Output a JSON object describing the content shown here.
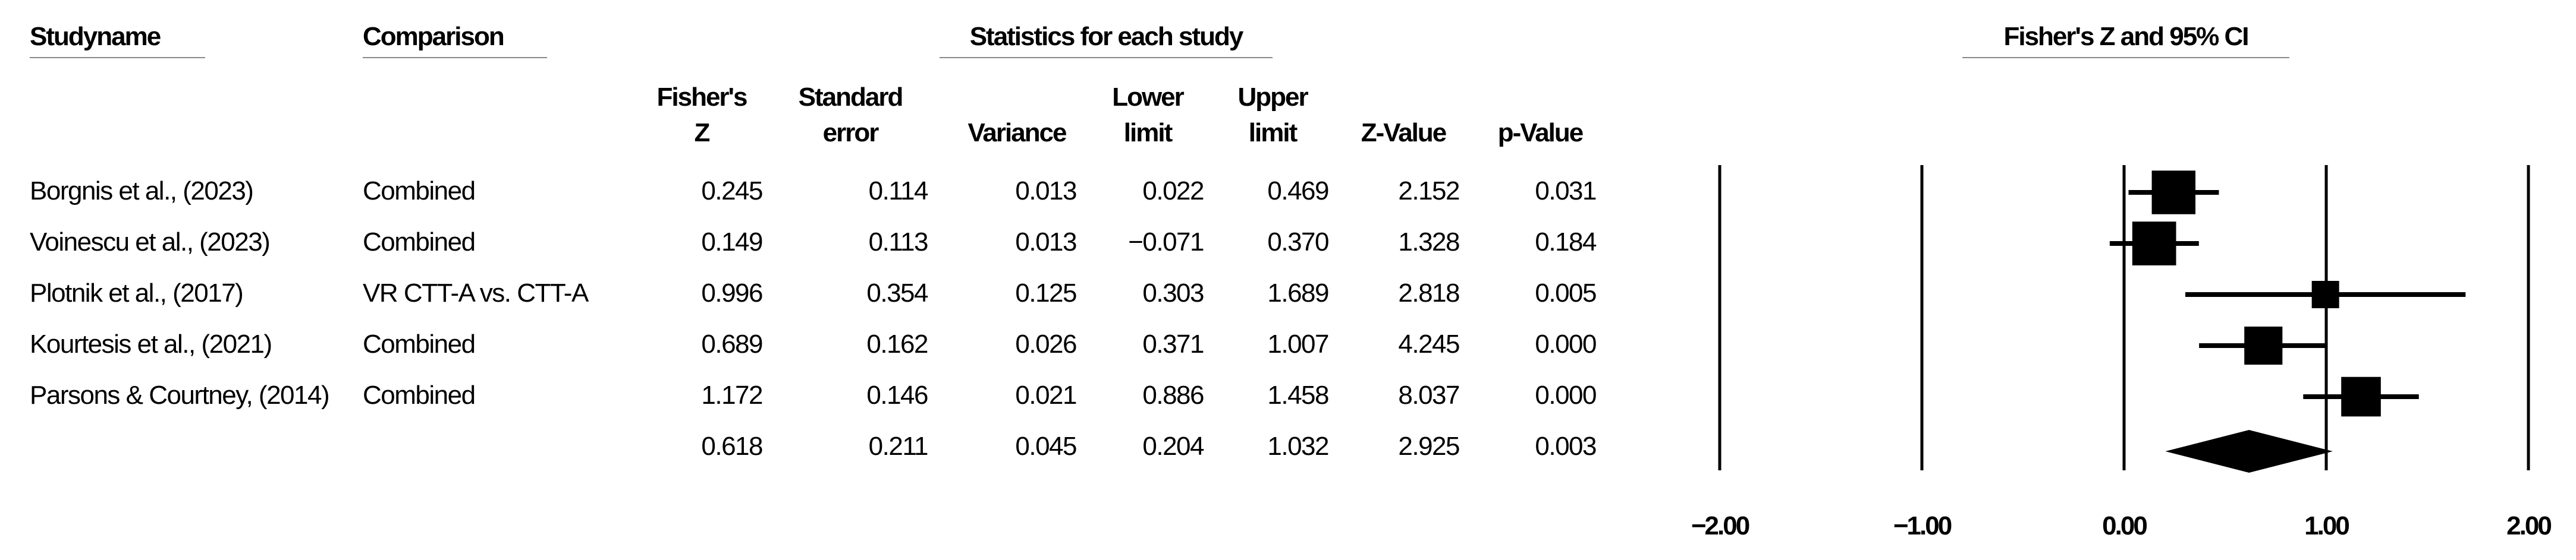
{
  "headers": {
    "study_name": "Studyname",
    "comparison": "Comparison",
    "statistics_group": "Statistics for each study",
    "plot_title": "Fisher's Z and 95% CI",
    "columns": [
      [
        "Fisher's",
        "Z"
      ],
      [
        "Standard",
        "error"
      ],
      [
        "",
        "Variance"
      ],
      [
        "Lower",
        "limit"
      ],
      [
        "Upper",
        "limit"
      ],
      [
        "",
        "Z-Value"
      ],
      [
        "",
        "p-Value"
      ]
    ]
  },
  "rows": [
    {
      "study": "Borgnis et al., (2023)",
      "comparison": "Combined",
      "z": "0.245",
      "se": "0.114",
      "var": "0.013",
      "ll": "0.022",
      "ul": "0.469",
      "zval": "2.152",
      "p": "0.031"
    },
    {
      "study": "Voinescu et al., (2023)",
      "comparison": "Combined",
      "z": "0.149",
      "se": "0.113",
      "var": "0.013",
      "ll": "−0.071",
      "ul": "0.370",
      "zval": "1.328",
      "p": "0.184"
    },
    {
      "study": "Plotnik et al., (2017)",
      "comparison": "VR CTT-A vs. CTT-A",
      "z": "0.996",
      "se": "0.354",
      "var": "0.125",
      "ll": "0.303",
      "ul": "1.689",
      "zval": "2.818",
      "p": "0.005"
    },
    {
      "study": "Kourtesis et al., (2021)",
      "comparison": "Combined",
      "z": "0.689",
      "se": "0.162",
      "var": "0.026",
      "ll": "0.371",
      "ul": "1.007",
      "zval": "4.245",
      "p": "0.000"
    },
    {
      "study": "Parsons & Courtney, (2014)",
      "comparison": "Combined",
      "z": "1.172",
      "se": "0.146",
      "var": "0.021",
      "ll": "0.886",
      "ul": "1.458",
      "zval": "8.037",
      "p": "0.000"
    }
  ],
  "summary": {
    "z": "0.618",
    "se": "0.211",
    "var": "0.045",
    "ll": "0.204",
    "ul": "1.032",
    "zval": "2.925",
    "p": "0.003"
  },
  "chart_data": {
    "type": "forest",
    "title": "Fisher's Z and 95% CI",
    "xlim": [
      -2,
      2
    ],
    "ticks": [
      -2,
      -1,
      0,
      1,
      2
    ],
    "tick_labels": [
      "−2.00",
      "−1.00",
      "0.00",
      "1.00",
      "2.00"
    ],
    "grid": "vertical lines at ticks",
    "studies": [
      {
        "label": "Borgnis et al., (2023)",
        "estimate": 0.245,
        "lower": 0.022,
        "upper": 0.469,
        "se": 0.114
      },
      {
        "label": "Voinescu et al., (2023)",
        "estimate": 0.149,
        "lower": -0.071,
        "upper": 0.37,
        "se": 0.113
      },
      {
        "label": "Plotnik et al., (2017)",
        "estimate": 0.996,
        "lower": 0.303,
        "upper": 1.689,
        "se": 0.354
      },
      {
        "label": "Kourtesis et al., (2021)",
        "estimate": 0.689,
        "lower": 0.371,
        "upper": 1.007,
        "se": 0.162
      },
      {
        "label": "Parsons & Courtney, (2014)",
        "estimate": 1.172,
        "lower": 0.886,
        "upper": 1.458,
        "se": 0.146
      }
    ],
    "summary": {
      "estimate": 0.618,
      "lower": 0.204,
      "upper": 1.032
    }
  }
}
